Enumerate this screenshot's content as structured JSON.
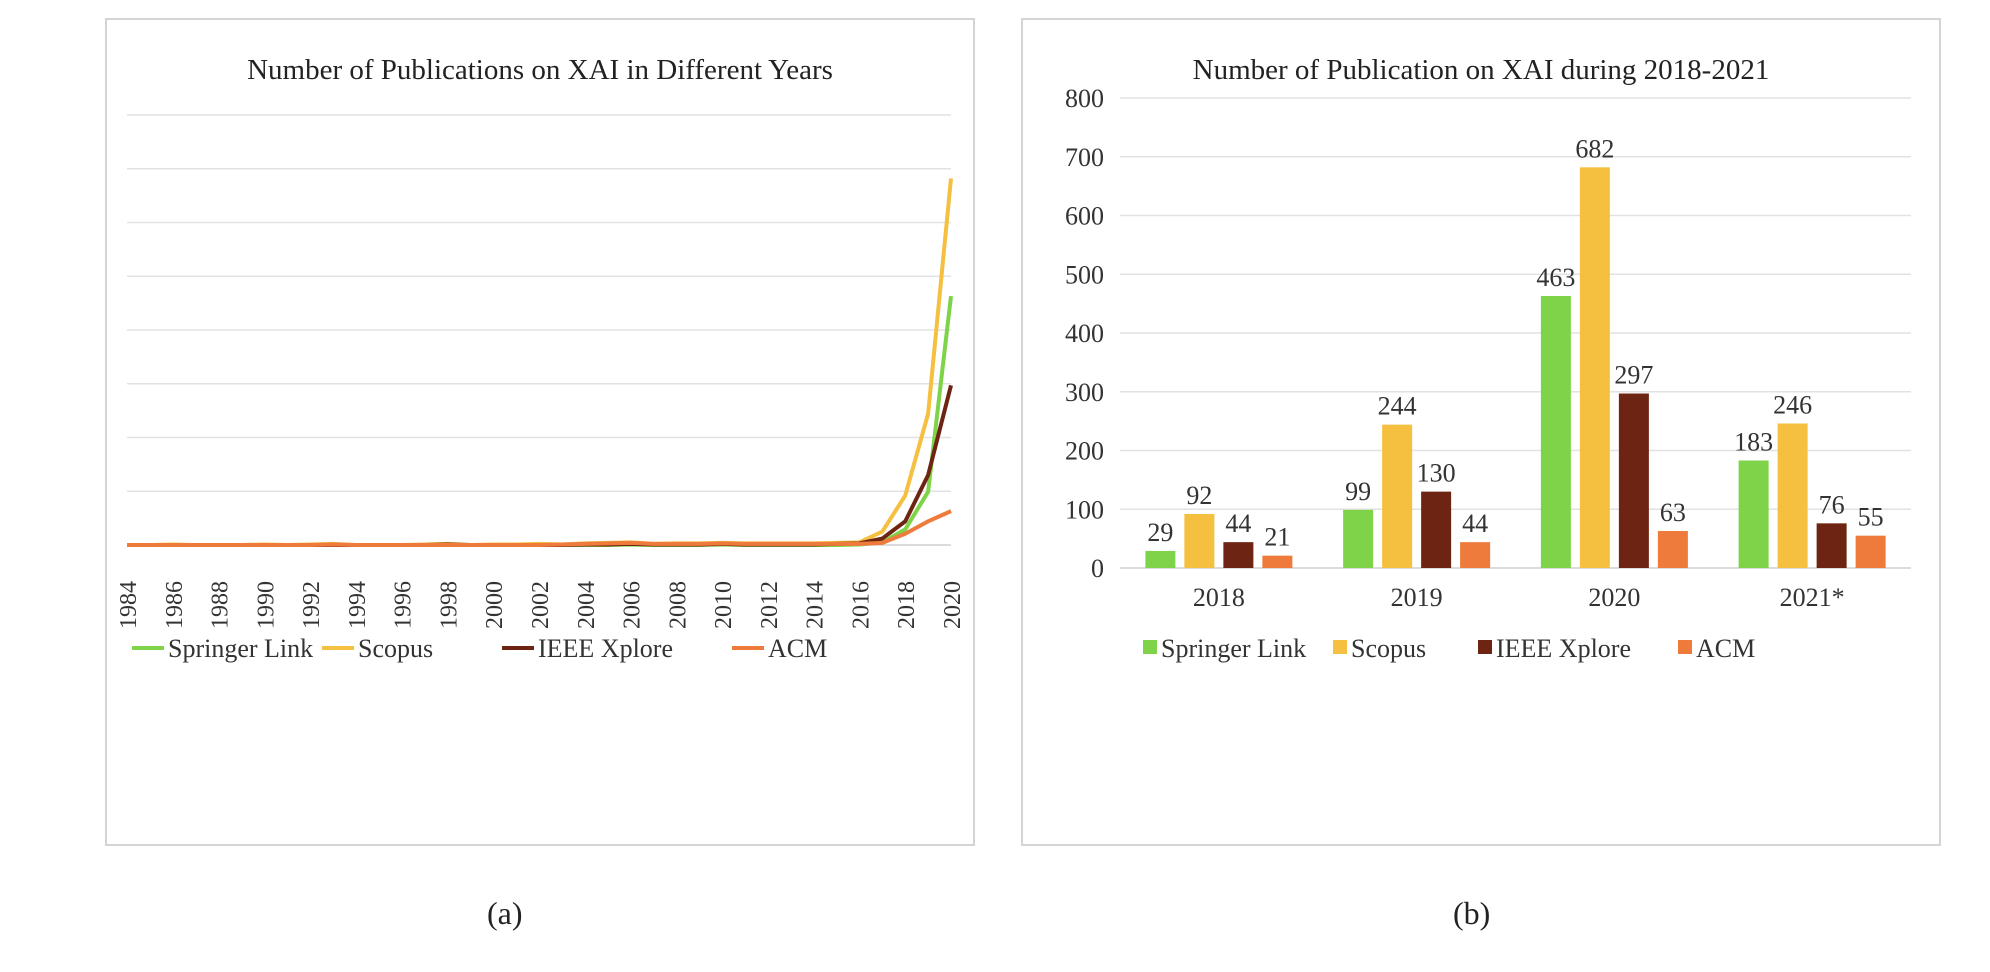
{
  "captions": {
    "a": "(a)",
    "b": "(b)"
  },
  "chart_data": [
    {
      "type": "line",
      "title": "Number of Publications on XAI in Different Years",
      "xlabel": "",
      "ylabel": "",
      "ylim": [
        0,
        800
      ],
      "yticks": [
        0,
        100,
        200,
        300,
        400,
        500,
        600,
        700,
        800
      ],
      "x": [
        1984,
        1985,
        1986,
        1987,
        1988,
        1989,
        1990,
        1991,
        1992,
        1993,
        1994,
        1995,
        1996,
        1997,
        1998,
        1999,
        2000,
        2001,
        2002,
        2003,
        2004,
        2005,
        2006,
        2007,
        2008,
        2009,
        2010,
        2011,
        2012,
        2013,
        2014,
        2015,
        2016,
        2017,
        2018,
        2019,
        2020
      ],
      "xticks": [
        "1984",
        "1986",
        "1988",
        "1990",
        "1992",
        "1994",
        "1996",
        "1998",
        "2000",
        "2002",
        "2004",
        "2006",
        "2008",
        "2010",
        "2012",
        "2014",
        "2016",
        "2018",
        "2020"
      ],
      "grid": true,
      "legend_position": "bottom",
      "series": [
        {
          "name": "Springer Link",
          "color": "#7ed348",
          "values": [
            0,
            0,
            0,
            0,
            0,
            0,
            0,
            0,
            0,
            0,
            0,
            0,
            0,
            0,
            0,
            0,
            0,
            0,
            0,
            0,
            0,
            0,
            1,
            0,
            0,
            0,
            1,
            0,
            0,
            0,
            0,
            0,
            1,
            5,
            29,
            99,
            463
          ]
        },
        {
          "name": "Scopus",
          "color": "#f5bf3f",
          "values": [
            0,
            0,
            1,
            0,
            0,
            0,
            1,
            0,
            1,
            2,
            0,
            0,
            0,
            1,
            2,
            0,
            1,
            1,
            2,
            1,
            3,
            4,
            5,
            2,
            3,
            3,
            4,
            3,
            3,
            3,
            3,
            4,
            5,
            25,
            92,
            244,
            682
          ]
        },
        {
          "name": "IEEE Xplore",
          "color": "#6e2412",
          "values": [
            0,
            0,
            0,
            0,
            0,
            0,
            0,
            0,
            0,
            0,
            0,
            0,
            0,
            0,
            1,
            0,
            0,
            0,
            0,
            0,
            1,
            1,
            2,
            1,
            1,
            1,
            2,
            1,
            1,
            1,
            1,
            2,
            3,
            12,
            44,
            130,
            297
          ]
        },
        {
          "name": "ACM",
          "color": "#ee7a3c",
          "values": [
            0,
            0,
            0,
            0,
            0,
            0,
            0,
            0,
            0,
            1,
            0,
            0,
            0,
            0,
            0,
            0,
            0,
            0,
            0,
            1,
            2,
            3,
            4,
            2,
            2,
            2,
            3,
            2,
            2,
            2,
            2,
            2,
            2,
            4,
            21,
            44,
            63
          ]
        }
      ]
    },
    {
      "type": "bar",
      "title": "Number of Publication on XAI during 2018-2021",
      "xlabel": "",
      "ylabel": "",
      "ylim": [
        0,
        800
      ],
      "yticks": [
        0,
        100,
        200,
        300,
        400,
        500,
        600,
        700,
        800
      ],
      "categories": [
        "2018",
        "2019",
        "2020",
        "2021*"
      ],
      "grid": true,
      "legend_position": "bottom",
      "series": [
        {
          "name": "Springer Link",
          "color": "#7ed348",
          "values": [
            29,
            99,
            463,
            183
          ]
        },
        {
          "name": "Scopus",
          "color": "#f5bf3f",
          "values": [
            92,
            244,
            682,
            246
          ]
        },
        {
          "name": "IEEE Xplore",
          "color": "#6e2412",
          "values": [
            44,
            130,
            297,
            76
          ]
        },
        {
          "name": "ACM",
          "color": "#ee7a3c",
          "values": [
            21,
            44,
            63,
            55
          ]
        }
      ]
    }
  ]
}
